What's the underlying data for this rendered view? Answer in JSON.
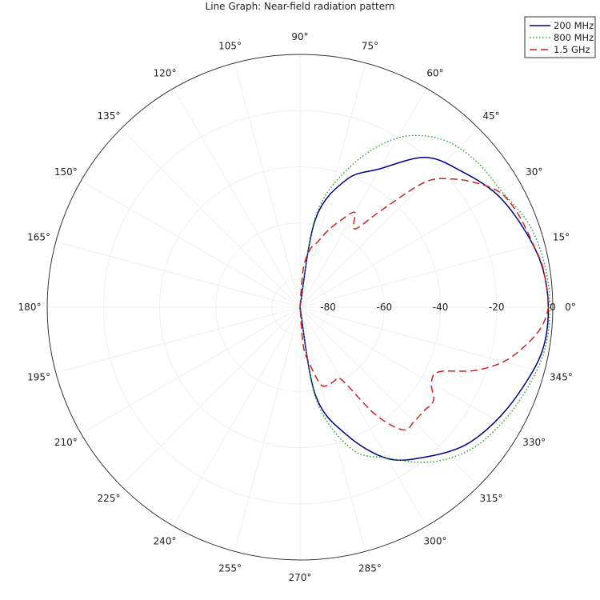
{
  "chart_data": {
    "type": "line",
    "projection": "polar",
    "title": "Line Graph: Near-field radiation pattern",
    "radial_axis": {
      "range": [
        -90,
        0
      ],
      "tick_values": [
        -80,
        -60,
        -40,
        -20,
        0
      ],
      "tick_labels": [
        "-80",
        "-60",
        "-40",
        "-20",
        "0"
      ]
    },
    "angular_axis": {
      "unit": "degrees",
      "tick_values": [
        0,
        15,
        30,
        45,
        60,
        75,
        90,
        105,
        120,
        135,
        150,
        165,
        180,
        195,
        210,
        225,
        240,
        255,
        270,
        285,
        300,
        315,
        330,
        345
      ],
      "tick_labels": [
        "0°",
        "15°",
        "30°",
        "45°",
        "60°",
        "75°",
        "90°",
        "105°",
        "120°",
        "135°",
        "150°",
        "165°",
        "180°",
        "195°",
        "210°",
        "225°",
        "240°",
        "255°",
        "270°",
        "285°",
        "300°",
        "315°",
        "330°",
        "345°"
      ]
    },
    "legend": {
      "placement": "top-right"
    },
    "series": [
      {
        "name": "200 MHz",
        "color": "#00008b",
        "dash": "solid",
        "angles": [
          90,
          80,
          70,
          60,
          50,
          40,
          30,
          20,
          10,
          0,
          -10,
          -20,
          -30,
          -40,
          -50,
          -60,
          -70,
          -80,
          -90
        ],
        "values": [
          -90,
          -58.1,
          -41.7,
          -33.1,
          -20.4,
          -14.8,
          -9.3,
          -5.8,
          -2.7,
          -1.6,
          -2.3,
          -5.8,
          -9.3,
          -13.5,
          -20.4,
          -27.8,
          -41.7,
          -58.1,
          -90
        ]
      },
      {
        "name": "800 MHz",
        "color": "#2ca02c",
        "dash": "dotted",
        "angles": [
          90,
          80,
          70,
          60,
          50,
          40,
          30,
          20,
          10,
          0,
          -10,
          -20,
          -30,
          -40,
          -50,
          -60,
          -70,
          -80,
          -90
        ],
        "values": [
          -90,
          -56.5,
          -36.3,
          -20.4,
          -11.9,
          -8.6,
          -7.2,
          -3.3,
          -1.6,
          -1.0,
          -1.6,
          -4.2,
          -7.2,
          -11.0,
          -18.0,
          -28.0,
          -36.3,
          -56.5,
          -90
        ]
      },
      {
        "name": "1.5 GHz",
        "color": "#cc2222",
        "dash": "dashed",
        "angles": [
          90,
          85,
          80,
          75,
          70,
          65,
          60,
          55,
          50,
          45,
          40,
          35,
          30,
          25,
          20,
          15,
          10,
          5,
          0,
          -5,
          -10,
          -15,
          -20,
          -25,
          -30,
          -35,
          -40,
          -45,
          -50,
          -55,
          -60,
          -65,
          -70,
          -75,
          -80,
          -85,
          -90
        ],
        "values": [
          -90,
          -76.0,
          -69.0,
          -66.0,
          -61.0,
          -56.0,
          -51.0,
          -56.0,
          -45.0,
          -27.0,
          -19.0,
          -13.0,
          -8.0,
          -6.0,
          -5.0,
          -4.0,
          -2.5,
          -2.0,
          -1.6,
          -4.0,
          -9.0,
          -15.0,
          -24.0,
          -35.5,
          -36.0,
          -32.0,
          -32.5,
          -32.5,
          -33.0,
          -43.5,
          -60.0,
          -61.0,
          -60.5,
          -61.5,
          -69.0,
          -76.0,
          -90
        ]
      }
    ]
  }
}
